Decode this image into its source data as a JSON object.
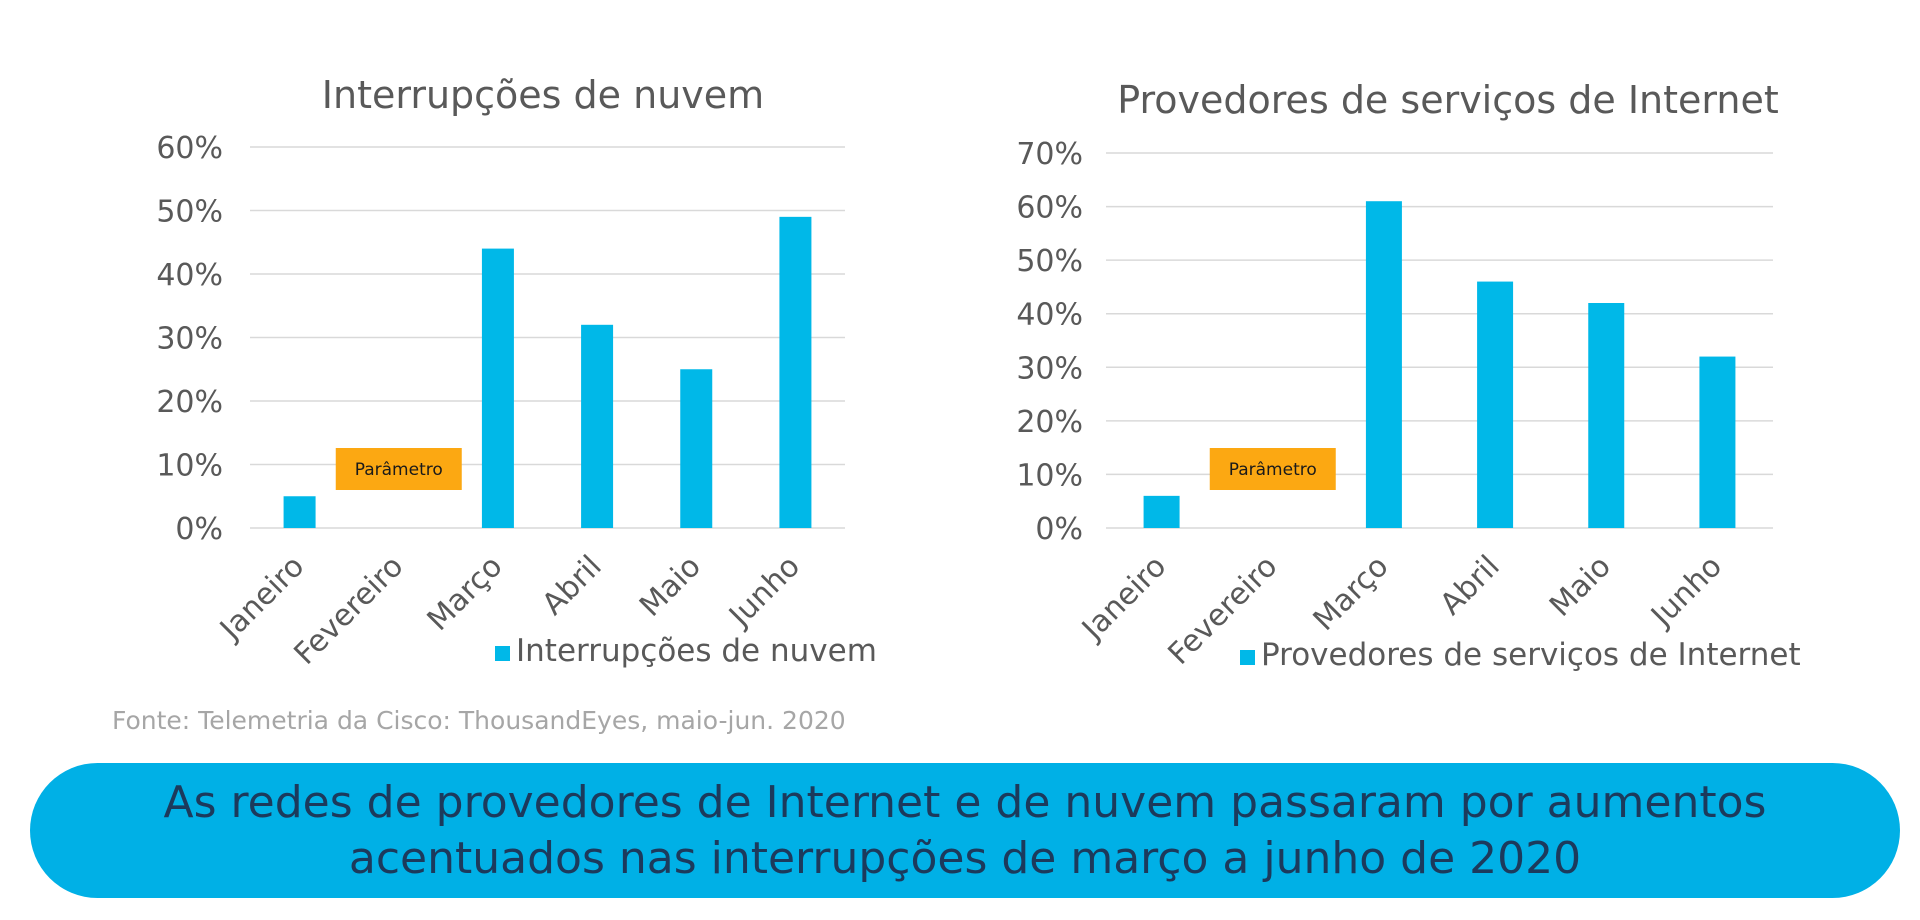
{
  "chart_data": [
    {
      "type": "bar",
      "title": "Interrupções de nuvem",
      "categories": [
        "Janeiro",
        "Fevereiro",
        "Março",
        "Abril",
        "Maio",
        "Junho"
      ],
      "series": [
        {
          "name": "Interrupções de nuvem",
          "values": [
            5,
            null,
            44,
            32,
            25,
            49
          ]
        }
      ],
      "y_ticks": [
        "0%",
        "10%",
        "20%",
        "30%",
        "40%",
        "50%",
        "60%"
      ],
      "ylim": [
        0,
        60
      ],
      "annotation": {
        "text": "Parâmetro",
        "category": "Fevereiro"
      },
      "legend": "bottom-right",
      "color": "#00b8e8",
      "annotation_color": "#fca812"
    },
    {
      "type": "bar",
      "title": "Provedores de serviços de Internet",
      "categories": [
        "Janeiro",
        "Fevereiro",
        "Março",
        "Abril",
        "Maio",
        "Junho"
      ],
      "series": [
        {
          "name": "Provedores de serviços de Internet",
          "values": [
            6,
            null,
            61,
            46,
            42,
            32
          ]
        }
      ],
      "y_ticks": [
        "0%",
        "10%",
        "20%",
        "30%",
        "40%",
        "50%",
        "60%",
        "70%"
      ],
      "ylim": [
        0,
        70
      ],
      "annotation": {
        "text": "Parâmetro",
        "category": "Fevereiro"
      },
      "legend": "bottom-right",
      "color": "#00b8e8",
      "annotation_color": "#fca812"
    }
  ],
  "source": "Fonte: Telemetria da Cisco: ThousandEyes, maio-jun. 2020",
  "banner": {
    "line1": "As redes de provedores de Internet e de nuvem passaram por aumentos",
    "line2": "acentuados nas interrupções de março a junho de 2020"
  }
}
